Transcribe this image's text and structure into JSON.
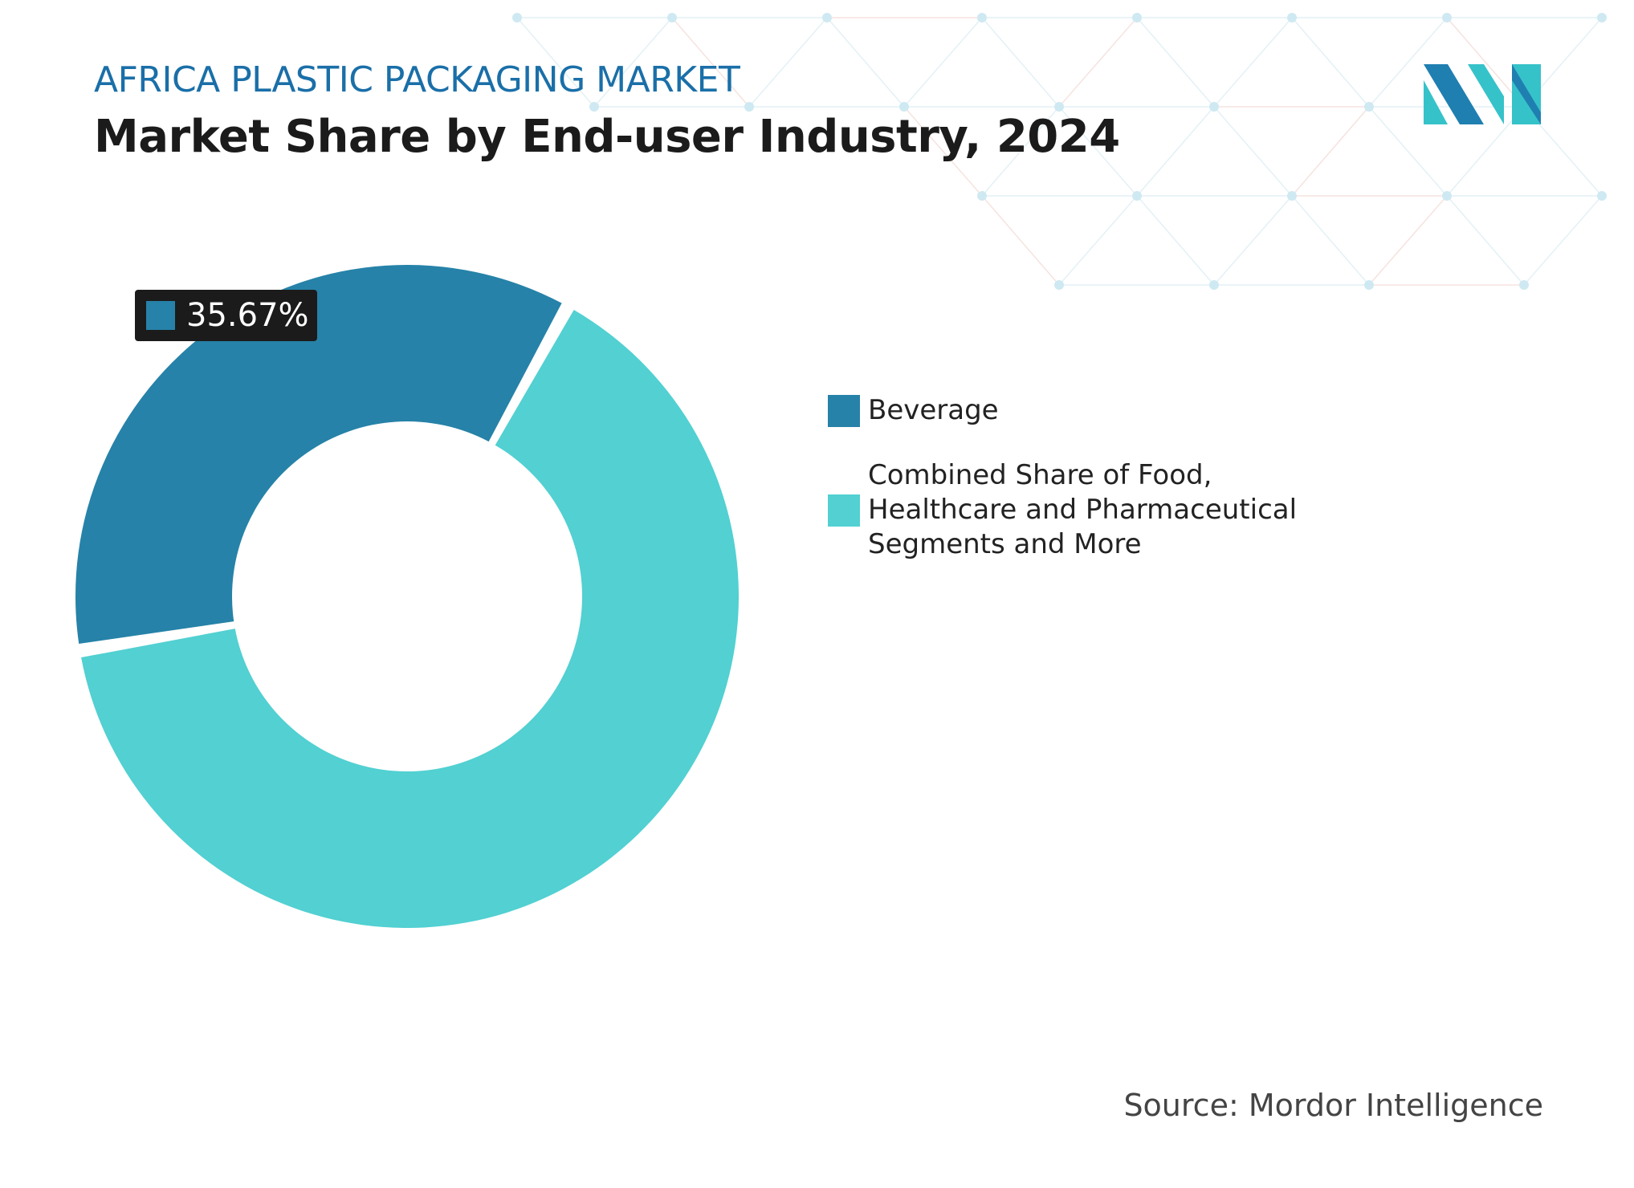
{
  "header": {
    "subtitle": "AFRICA PLASTIC PACKAGING MARKET",
    "title": "Market Share by End-user Industry, 2024"
  },
  "source": "Source: Mordor Intelligence",
  "logo": {
    "name": "mordor-intelligence-logo",
    "colors": [
      "#1f7fb0",
      "#36c2c9"
    ]
  },
  "chart_data": {
    "type": "pie",
    "variant": "donut",
    "series": [
      {
        "name": "Beverage",
        "value": 35.67,
        "color": "#2682a8"
      },
      {
        "name": "Combined Share of Food, Healthcare and Pharmaceutical Segments and More",
        "value": 64.33,
        "color": "#52d0d2"
      }
    ],
    "data_labels": [
      {
        "series": "Beverage",
        "text": "35.67%"
      }
    ],
    "legend": "right"
  }
}
